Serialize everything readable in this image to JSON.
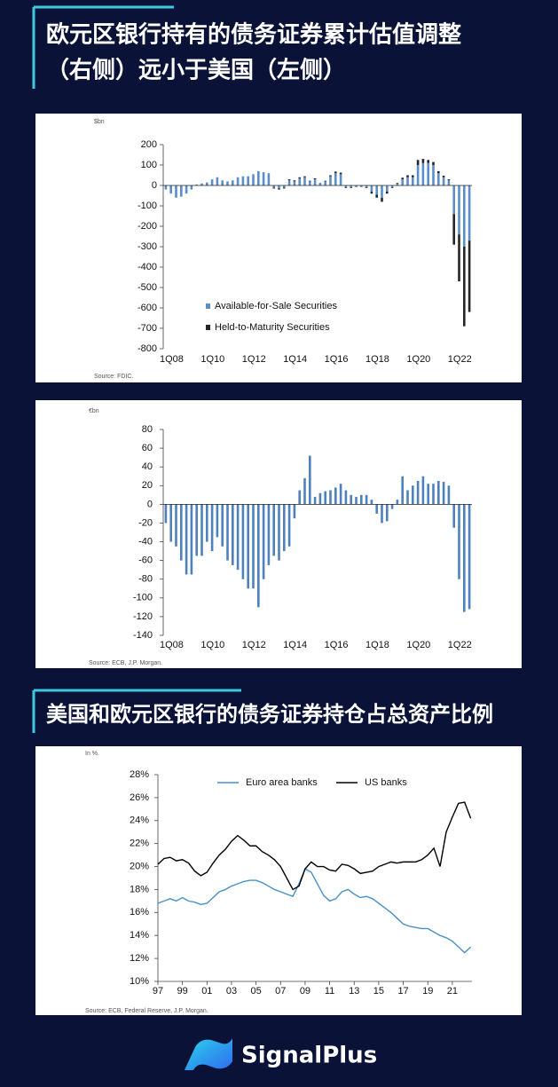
{
  "section1": {
    "title_lines": [
      "欧元区银行持有的债务证券累计估值调整",
      "（右侧）远小于美国（左侧）"
    ]
  },
  "section2": {
    "title": "美国和欧元区银行的债务证券持仓占总资产比例"
  },
  "brand": "SignalPlus",
  "chart_data": [
    {
      "type": "bar",
      "stacked": true,
      "unit": "$bn",
      "source": "Source: FDIC.",
      "legend": "lower left",
      "categories": [
        "1Q08",
        null,
        null,
        null,
        null,
        null,
        null,
        null,
        "1Q10",
        null,
        null,
        null,
        null,
        null,
        null,
        null,
        "1Q12",
        null,
        null,
        null,
        null,
        null,
        null,
        null,
        "1Q14",
        null,
        null,
        null,
        null,
        null,
        null,
        null,
        "1Q16",
        null,
        null,
        null,
        null,
        null,
        null,
        null,
        "1Q18",
        null,
        null,
        null,
        null,
        null,
        null,
        null,
        "1Q20",
        null,
        null,
        null,
        null,
        null,
        null,
        null,
        "1Q22",
        null,
        null,
        null
      ],
      "series": [
        {
          "name": "Available-for-Sale Securities",
          "color": "#5b8fca",
          "values": [
            -20,
            -40,
            -60,
            -55,
            -40,
            -20,
            5,
            10,
            15,
            30,
            40,
            25,
            20,
            25,
            40,
            45,
            45,
            55,
            70,
            65,
            60,
            -10,
            -15,
            -10,
            25,
            20,
            35,
            40,
            20,
            30,
            10,
            20,
            45,
            60,
            55,
            -10,
            -10,
            -5,
            -5,
            -10,
            -30,
            -45,
            -60,
            -30,
            -10,
            10,
            30,
            40,
            40,
            100,
            110,
            110,
            100,
            60,
            40,
            25,
            -140,
            -240,
            -300,
            -270
          ]
        },
        {
          "name": "Held-to-Maturity Securities",
          "color": "#262626",
          "values": [
            0,
            0,
            0,
            0,
            0,
            0,
            0,
            0,
            0,
            0,
            0,
            0,
            0,
            0,
            0,
            0,
            0,
            0,
            0,
            0,
            0,
            -5,
            -5,
            -5,
            5,
            5,
            5,
            5,
            3,
            5,
            2,
            3,
            5,
            8,
            8,
            -3,
            -3,
            -2,
            -2,
            -3,
            -10,
            -15,
            -20,
            -10,
            -3,
            3,
            8,
            10,
            10,
            25,
            20,
            15,
            15,
            10,
            8,
            5,
            -150,
            -230,
            -390,
            -350
          ]
        }
      ],
      "ylim": [
        -800,
        200
      ],
      "yticks": [
        -800,
        -700,
        -600,
        -500,
        -400,
        -300,
        -200,
        -100,
        0,
        100,
        200
      ]
    },
    {
      "type": "bar",
      "unit": "€bn",
      "source": "Source: ECB, J.P. Morgan.",
      "color": "#4f81bd",
      "categories": [
        "1Q08",
        null,
        null,
        null,
        null,
        null,
        null,
        null,
        "1Q10",
        null,
        null,
        null,
        null,
        null,
        null,
        null,
        "1Q12",
        null,
        null,
        null,
        null,
        null,
        null,
        null,
        "1Q14",
        null,
        null,
        null,
        null,
        null,
        null,
        null,
        "1Q16",
        null,
        null,
        null,
        null,
        null,
        null,
        null,
        "1Q18",
        null,
        null,
        null,
        null,
        null,
        null,
        null,
        "1Q20",
        null,
        null,
        null,
        null,
        null,
        null,
        null,
        "1Q22",
        null,
        null,
        null
      ],
      "values": [
        -20,
        -40,
        -45,
        -60,
        -75,
        -75,
        -55,
        -55,
        -40,
        -50,
        -35,
        -45,
        -60,
        -65,
        -70,
        -80,
        -90,
        -90,
        -110,
        -80,
        -65,
        -55,
        -60,
        -50,
        -45,
        -15,
        15,
        28,
        52,
        8,
        12,
        14,
        15,
        18,
        22,
        15,
        10,
        8,
        10,
        10,
        5,
        -10,
        -20,
        -18,
        -5,
        5,
        30,
        15,
        20,
        25,
        30,
        22,
        22,
        25,
        24,
        20,
        -25,
        -80,
        -115,
        -112
      ],
      "ylim": [
        -140,
        80
      ],
      "yticks": [
        -140,
        -120,
        -100,
        -80,
        -60,
        -40,
        -20,
        0,
        20,
        40,
        60,
        80
      ]
    },
    {
      "type": "line",
      "unit": "In %.",
      "source": "Source: ECB, Federal Reserve, J.P. Morgan.",
      "legend": "upper center",
      "x": [
        1997,
        1997.5,
        1998,
        1998.5,
        1999,
        1999.5,
        2000,
        2000.5,
        2001,
        2001.5,
        2002,
        2002.5,
        2003,
        2003.5,
        2004,
        2004.5,
        2005,
        2005.5,
        2006,
        2006.5,
        2007,
        2007.5,
        2008,
        2008.5,
        2009,
        2009.5,
        2010,
        2010.5,
        2011,
        2011.5,
        2012,
        2012.5,
        2013,
        2013.5,
        2014,
        2014.5,
        2015,
        2015.5,
        2016,
        2016.5,
        2017,
        2017.5,
        2018,
        2018.5,
        2019,
        2019.5,
        2020,
        2020.5,
        2021,
        2021.5,
        2022,
        2022.5
      ],
      "series": [
        {
          "name": "Euro area banks",
          "color": "#4a90c8",
          "values": [
            16.8,
            17.0,
            17.2,
            17.0,
            17.3,
            17.0,
            16.9,
            16.7,
            16.8,
            17.3,
            17.8,
            18.0,
            18.3,
            18.5,
            18.7,
            18.8,
            18.8,
            18.6,
            18.3,
            18.0,
            17.8,
            17.6,
            17.4,
            18.5,
            19.8,
            19.5,
            18.5,
            17.5,
            17.0,
            17.2,
            17.8,
            18.0,
            17.6,
            17.3,
            17.4,
            17.2,
            16.8,
            16.4,
            16.0,
            15.5,
            15.0,
            14.8,
            14.7,
            14.6,
            14.6,
            14.3,
            14.0,
            13.8,
            13.5,
            13.0,
            12.5,
            13.0
          ]
        },
        {
          "name": "US banks",
          "color": "#000000",
          "values": [
            20.2,
            20.7,
            20.8,
            20.5,
            20.6,
            20.3,
            19.6,
            19.2,
            19.5,
            20.3,
            21.0,
            21.5,
            22.2,
            22.7,
            22.3,
            21.8,
            21.8,
            21.3,
            21.0,
            20.6,
            20.0,
            19.0,
            18.0,
            18.3,
            19.8,
            20.4,
            20.0,
            20.0,
            19.7,
            19.6,
            20.2,
            20.1,
            19.8,
            19.4,
            19.5,
            19.6,
            20.0,
            20.2,
            20.4,
            20.3,
            20.4,
            20.4,
            20.4,
            20.6,
            21.0,
            21.6,
            20.0,
            23.0,
            24.3,
            25.5,
            25.6,
            24.2
          ]
        }
      ],
      "xlim": [
        1997,
        2022.6
      ],
      "xticks": [
        {
          "value": 1997,
          "label": "97"
        },
        {
          "value": 1999,
          "label": "99"
        },
        {
          "value": 2001,
          "label": "01"
        },
        {
          "value": 2003,
          "label": "03"
        },
        {
          "value": 2005,
          "label": "05"
        },
        {
          "value": 2007,
          "label": "07"
        },
        {
          "value": 2009,
          "label": "09"
        },
        {
          "value": 2011,
          "label": "11"
        },
        {
          "value": 2013,
          "label": "13"
        },
        {
          "value": 2015,
          "label": "15"
        },
        {
          "value": 2017,
          "label": "17"
        },
        {
          "value": 2019,
          "label": "19"
        },
        {
          "value": 2021,
          "label": "21"
        }
      ],
      "ylim": [
        10,
        28
      ],
      "yticks": [
        {
          "value": 10,
          "label": "10%"
        },
        {
          "value": 12,
          "label": "12%"
        },
        {
          "value": 14,
          "label": "14%"
        },
        {
          "value": 16,
          "label": "16%"
        },
        {
          "value": 18,
          "label": "18%"
        },
        {
          "value": 20,
          "label": "20%"
        },
        {
          "value": 22,
          "label": "22%"
        },
        {
          "value": 24,
          "label": "24%"
        },
        {
          "value": 26,
          "label": "26%"
        },
        {
          "value": 28,
          "label": "28%"
        }
      ]
    }
  ]
}
